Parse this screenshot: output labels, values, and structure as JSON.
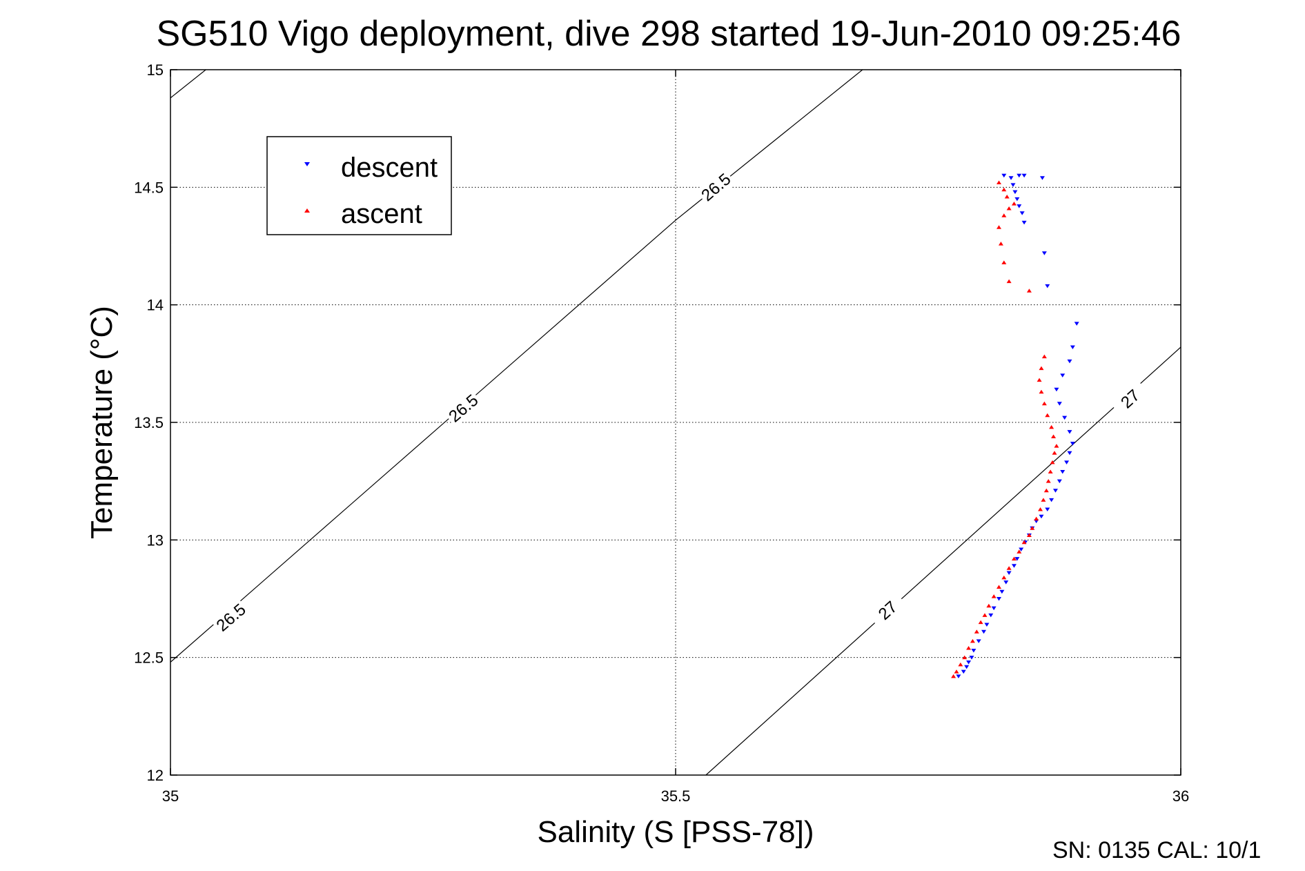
{
  "chart_data": {
    "type": "scatter",
    "title": "SG510 Vigo deployment, dive 298 started 19-Jun-2010 09:25:46",
    "xlabel": "Salinity (S [PSS-78])",
    "ylabel": "Temperature (°C)",
    "xlim": [
      35,
      36
    ],
    "ylim": [
      12,
      15
    ],
    "x_ticks": [
      35,
      35.5,
      36
    ],
    "y_ticks": [
      12,
      12.5,
      13,
      13.5,
      14,
      14.5,
      15
    ],
    "x_tick_labels": [
      "35",
      "35.5",
      "36"
    ],
    "y_tick_labels": [
      "12",
      "12.5",
      "13",
      "13.5",
      "14",
      "14.5",
      "15"
    ],
    "grid": true,
    "legend": {
      "position": "top-left",
      "entries": [
        {
          "label": "descent",
          "color": "#0000ff",
          "marker": "triangle-down"
        },
        {
          "label": "ascent",
          "color": "#ff0000",
          "marker": "triangle-up"
        }
      ]
    },
    "density_contours": [
      {
        "label": "26.5",
        "points": [
          [
            35.0,
            12.48
          ],
          [
            35.5,
            14.36
          ],
          [
            35.685,
            15.0
          ]
        ],
        "extra_segment": [
          [
            35.0,
            14.88
          ],
          [
            35.035,
            15.0
          ]
        ],
        "label_positions": [
          [
            35.06,
            12.67
          ],
          [
            35.29,
            13.56
          ],
          [
            35.54,
            14.5
          ]
        ]
      },
      {
        "label": "27",
        "points": [
          [
            35.53,
            12.0
          ],
          [
            36.0,
            13.82
          ]
        ],
        "label_positions": [
          [
            35.71,
            12.7
          ],
          [
            35.95,
            13.6
          ]
        ]
      }
    ],
    "series": [
      {
        "name": "descent",
        "color": "#0000ff",
        "marker": "triangle-down",
        "points": [
          [
            35.78,
            12.42
          ],
          [
            35.785,
            12.44
          ],
          [
            35.788,
            12.46
          ],
          [
            35.79,
            12.48
          ],
          [
            35.793,
            12.5
          ],
          [
            35.795,
            12.53
          ],
          [
            35.8,
            12.57
          ],
          [
            35.805,
            12.61
          ],
          [
            35.808,
            12.64
          ],
          [
            35.812,
            12.68
          ],
          [
            35.815,
            12.71
          ],
          [
            35.82,
            12.75
          ],
          [
            35.823,
            12.78
          ],
          [
            35.827,
            12.82
          ],
          [
            35.83,
            12.86
          ],
          [
            35.835,
            12.89
          ],
          [
            35.838,
            12.92
          ],
          [
            35.842,
            12.96
          ],
          [
            35.846,
            12.99
          ],
          [
            35.85,
            13.02
          ],
          [
            35.853,
            13.05
          ],
          [
            35.857,
            13.08
          ],
          [
            35.862,
            13.1
          ],
          [
            35.868,
            13.13
          ],
          [
            35.872,
            13.17
          ],
          [
            35.876,
            13.21
          ],
          [
            35.88,
            13.25
          ],
          [
            35.883,
            13.29
          ],
          [
            35.887,
            13.33
          ],
          [
            35.89,
            13.37
          ],
          [
            35.893,
            13.41
          ],
          [
            35.89,
            13.46
          ],
          [
            35.885,
            13.52
          ],
          [
            35.88,
            13.58
          ],
          [
            35.877,
            13.64
          ],
          [
            35.883,
            13.7
          ],
          [
            35.89,
            13.76
          ],
          [
            35.893,
            13.82
          ],
          [
            35.897,
            13.92
          ],
          [
            35.868,
            14.08
          ],
          [
            35.865,
            14.22
          ],
          [
            35.845,
            14.35
          ],
          [
            35.843,
            14.39
          ],
          [
            35.84,
            14.42
          ],
          [
            35.838,
            14.45
          ],
          [
            35.836,
            14.48
          ],
          [
            35.834,
            14.51
          ],
          [
            35.832,
            14.54
          ],
          [
            35.825,
            14.55
          ],
          [
            35.84,
            14.55
          ],
          [
            35.863,
            14.54
          ],
          [
            35.845,
            14.55
          ]
        ]
      },
      {
        "name": "ascent",
        "color": "#ff0000",
        "marker": "triangle-up",
        "points": [
          [
            35.775,
            12.42
          ],
          [
            35.778,
            12.44
          ],
          [
            35.782,
            12.47
          ],
          [
            35.786,
            12.5
          ],
          [
            35.79,
            12.54
          ],
          [
            35.794,
            12.57
          ],
          [
            35.798,
            12.61
          ],
          [
            35.802,
            12.65
          ],
          [
            35.806,
            12.68
          ],
          [
            35.81,
            12.72
          ],
          [
            35.815,
            12.76
          ],
          [
            35.82,
            12.8
          ],
          [
            35.825,
            12.84
          ],
          [
            35.83,
            12.88
          ],
          [
            35.835,
            12.92
          ],
          [
            35.84,
            12.95
          ],
          [
            35.845,
            12.99
          ],
          [
            35.85,
            13.02
          ],
          [
            35.853,
            13.05
          ],
          [
            35.857,
            13.09
          ],
          [
            35.861,
            13.13
          ],
          [
            35.864,
            13.17
          ],
          [
            35.867,
            13.21
          ],
          [
            35.869,
            13.25
          ],
          [
            35.871,
            13.29
          ],
          [
            35.873,
            13.33
          ],
          [
            35.875,
            13.37
          ],
          [
            35.877,
            13.4
          ],
          [
            35.874,
            13.44
          ],
          [
            35.872,
            13.48
          ],
          [
            35.868,
            13.53
          ],
          [
            35.865,
            13.58
          ],
          [
            35.862,
            13.63
          ],
          [
            35.86,
            13.68
          ],
          [
            35.862,
            13.73
          ],
          [
            35.865,
            13.78
          ],
          [
            35.85,
            14.06
          ],
          [
            35.83,
            14.1
          ],
          [
            35.825,
            14.18
          ],
          [
            35.822,
            14.26
          ],
          [
            35.82,
            14.33
          ],
          [
            35.825,
            14.38
          ],
          [
            35.83,
            14.41
          ],
          [
            35.835,
            14.43
          ],
          [
            35.828,
            14.46
          ],
          [
            35.825,
            14.49
          ],
          [
            35.82,
            14.52
          ]
        ]
      }
    ]
  },
  "footer": {
    "text": "SN: 0135  CAL: 10/1"
  }
}
